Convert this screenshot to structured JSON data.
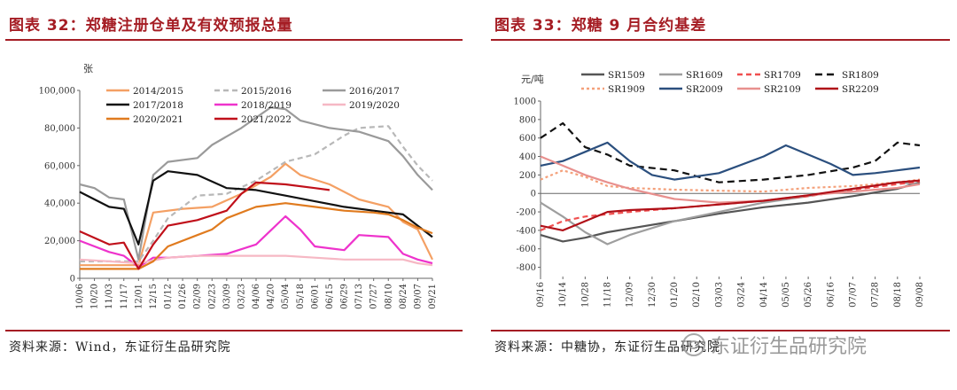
{
  "left": {
    "title": "图表 32：郑糖注册仓单及有效预报总量",
    "source": "资料来源：Wind，东证衍生品研究院"
  },
  "right": {
    "title": "图表 33：郑糖 9 月合约基差",
    "source": "资料来源：中糖协，东证衍生品研究院"
  },
  "watermark": {
    "text": "东证衍生品研究院",
    "icon": "wechat-icon"
  },
  "chart_data": [
    {
      "type": "line",
      "unit_label": "张",
      "x_ticks": [
        "10/06",
        "10/20",
        "11/03",
        "11/17",
        "12/01",
        "12/15",
        "01/12",
        "01/26",
        "02/09",
        "02/23",
        "03/09",
        "03/23",
        "04/06",
        "04/20",
        "05/04",
        "05/18",
        "06/01",
        "06/15",
        "06/29",
        "07/13",
        "07/27",
        "08/10",
        "08/24",
        "09/07",
        "09/21"
      ],
      "ylim": [
        0,
        100000
      ],
      "y_ticks": [
        0,
        20000,
        40000,
        60000,
        80000,
        100000
      ],
      "y_tick_labels": [
        "0",
        "20,000",
        "40,000",
        "60,000",
        "80,000",
        "100,000"
      ],
      "legend": "top",
      "series": [
        {
          "name": "2014/2015",
          "color": "#f4a064",
          "dash": "solid",
          "points": [
            [
              0,
              7000
            ],
            [
              4,
              7000
            ],
            [
              5,
              35000
            ],
            [
              7,
              37000
            ],
            [
              9,
              38000
            ],
            [
              11,
              45000
            ],
            [
              13,
              54000
            ],
            [
              14,
              61000
            ],
            [
              15,
              55000
            ],
            [
              17,
              50000
            ],
            [
              19,
              42000
            ],
            [
              21,
              38000
            ],
            [
              22,
              30000
            ],
            [
              23,
              26000
            ],
            [
              24,
              10000
            ]
          ]
        },
        {
          "name": "2015/2016",
          "color": "#b8b8b8",
          "dash": "6,4",
          "points": [
            [
              0,
              9000
            ],
            [
              4,
              9000
            ],
            [
              5,
              20000
            ],
            [
              6,
              32000
            ],
            [
              8,
              44000
            ],
            [
              10,
              45000
            ],
            [
              12,
              52000
            ],
            [
              14,
              62000
            ],
            [
              16,
              66000
            ],
            [
              18,
              76000
            ],
            [
              19,
              80000
            ],
            [
              21,
              81000
            ],
            [
              22,
              70000
            ],
            [
              23,
              60000
            ],
            [
              24,
              52000
            ]
          ]
        },
        {
          "name": "2016/2017",
          "color": "#9a9a9a",
          "dash": "solid",
          "points": [
            [
              0,
              50000
            ],
            [
              1,
              48000
            ],
            [
              2,
              43000
            ],
            [
              3,
              42000
            ],
            [
              4,
              10000
            ],
            [
              5,
              55000
            ],
            [
              6,
              62000
            ],
            [
              8,
              64000
            ],
            [
              9,
              71000
            ],
            [
              11,
              80000
            ],
            [
              13,
              91000
            ],
            [
              14,
              90000
            ],
            [
              15,
              84000
            ],
            [
              17,
              80000
            ],
            [
              19,
              78000
            ],
            [
              21,
              73000
            ],
            [
              22,
              65000
            ],
            [
              23,
              55000
            ],
            [
              24,
              47000
            ]
          ]
        },
        {
          "name": "2017/2018",
          "color": "#111111",
          "dash": "solid",
          "points": [
            [
              0,
              46000
            ],
            [
              2,
              38000
            ],
            [
              3,
              37000
            ],
            [
              4,
              18000
            ],
            [
              5,
              52000
            ],
            [
              6,
              57000
            ],
            [
              8,
              55000
            ],
            [
              10,
              48000
            ],
            [
              12,
              47000
            ],
            [
              14,
              44000
            ],
            [
              16,
              41000
            ],
            [
              18,
              38000
            ],
            [
              20,
              36000
            ],
            [
              22,
              34000
            ],
            [
              23,
              28000
            ],
            [
              24,
              22000
            ]
          ]
        },
        {
          "name": "2018/2019",
          "color": "#ee33cc",
          "dash": "solid",
          "points": [
            [
              0,
              20000
            ],
            [
              2,
              14000
            ],
            [
              3,
              12000
            ],
            [
              4,
              6000
            ],
            [
              5,
              11000
            ],
            [
              6,
              11000
            ],
            [
              8,
              12000
            ],
            [
              10,
              13000
            ],
            [
              12,
              18000
            ],
            [
              14,
              33000
            ],
            [
              15,
              26000
            ],
            [
              16,
              17000
            ],
            [
              17,
              16000
            ],
            [
              18,
              15000
            ],
            [
              19,
              23000
            ],
            [
              21,
              22000
            ],
            [
              22,
              13000
            ],
            [
              23,
              10000
            ],
            [
              24,
              8000
            ]
          ]
        },
        {
          "name": "2019/2020",
          "color": "#f6b8c4",
          "dash": "solid",
          "points": [
            [
              0,
              10000
            ],
            [
              2,
              9000
            ],
            [
              4,
              8000
            ],
            [
              6,
              11000
            ],
            [
              8,
              12000
            ],
            [
              10,
              12000
            ],
            [
              12,
              12000
            ],
            [
              14,
              12000
            ],
            [
              16,
              11000
            ],
            [
              18,
              10000
            ],
            [
              20,
              10000
            ],
            [
              22,
              10000
            ],
            [
              23,
              8000
            ],
            [
              24,
              7000
            ]
          ]
        },
        {
          "name": "2020/2021",
          "color": "#e07b1f",
          "dash": "solid",
          "points": [
            [
              0,
              5000
            ],
            [
              4,
              5000
            ],
            [
              5,
              9000
            ],
            [
              6,
              17000
            ],
            [
              8,
              23000
            ],
            [
              9,
              26000
            ],
            [
              10,
              32000
            ],
            [
              12,
              38000
            ],
            [
              14,
              40000
            ],
            [
              16,
              38000
            ],
            [
              18,
              36000
            ],
            [
              20,
              35000
            ],
            [
              21,
              34000
            ],
            [
              22,
              31000
            ],
            [
              23,
              27000
            ],
            [
              24,
              24000
            ]
          ]
        },
        {
          "name": "2021/2022",
          "color": "#c0101a",
          "dash": "solid",
          "points": [
            [
              0,
              25000
            ],
            [
              2,
              18000
            ],
            [
              3,
              19000
            ],
            [
              4,
              5000
            ],
            [
              5,
              18000
            ],
            [
              6,
              28000
            ],
            [
              8,
              31000
            ],
            [
              10,
              36000
            ],
            [
              11,
              45000
            ],
            [
              12,
              51000
            ],
            [
              14,
              50000
            ],
            [
              16,
              48000
            ],
            [
              17,
              47000
            ]
          ]
        }
      ]
    },
    {
      "type": "line",
      "unit_label": "元/吨",
      "x_ticks": [
        "09/16",
        "10/14",
        "10/28",
        "11/18",
        "12/09",
        "12/30",
        "01/20",
        "02/10",
        "03/03",
        "03/24",
        "04/14",
        "05/05",
        "05/26",
        "06/16",
        "07/07",
        "07/28",
        "08/18",
        "09/08"
      ],
      "ylim": [
        -900,
        1000
      ],
      "y_ticks": [
        -800,
        -600,
        -400,
        -200,
        0,
        200,
        400,
        600,
        800,
        1000
      ],
      "y_tick_labels": [
        "-800",
        "-600",
        "-400",
        "-200",
        "0",
        "200",
        "400",
        "600",
        "800",
        "1000"
      ],
      "legend": "top",
      "series": [
        {
          "name": "SR1509",
          "color": "#555555",
          "dash": "solid",
          "points": [
            [
              0,
              -450
            ],
            [
              1,
              -520
            ],
            [
              2,
              -480
            ],
            [
              3,
              -420
            ],
            [
              4,
              -380
            ],
            [
              6,
              -300
            ],
            [
              8,
              -220
            ],
            [
              10,
              -150
            ],
            [
              12,
              -100
            ],
            [
              14,
              -30
            ],
            [
              16,
              50
            ],
            [
              17,
              120
            ]
          ]
        },
        {
          "name": "SR1609",
          "color": "#9e9e9e",
          "dash": "solid",
          "points": [
            [
              0,
              -100
            ],
            [
              1,
              -250
            ],
            [
              2,
              -420
            ],
            [
              3,
              -550
            ],
            [
              4,
              -450
            ],
            [
              6,
              -300
            ],
            [
              8,
              -200
            ],
            [
              10,
              -100
            ],
            [
              12,
              -30
            ],
            [
              14,
              50
            ],
            [
              16,
              120
            ],
            [
              17,
              100
            ]
          ]
        },
        {
          "name": "SR1709",
          "color": "#f05050",
          "dash": "6,4",
          "points": [
            [
              0,
              -400
            ],
            [
              1,
              -300
            ],
            [
              2,
              -250
            ],
            [
              4,
              -200
            ],
            [
              6,
              -160
            ],
            [
              8,
              -120
            ],
            [
              10,
              -80
            ],
            [
              12,
              -30
            ],
            [
              14,
              40
            ],
            [
              16,
              100
            ],
            [
              17,
              130
            ]
          ]
        },
        {
          "name": "SR1809",
          "color": "#111111",
          "dash": "8,5",
          "points": [
            [
              0,
              600
            ],
            [
              1,
              760
            ],
            [
              2,
              500
            ],
            [
              3,
              420
            ],
            [
              4,
              300
            ],
            [
              6,
              250
            ],
            [
              8,
              120
            ],
            [
              10,
              150
            ],
            [
              12,
              200
            ],
            [
              14,
              280
            ],
            [
              15,
              350
            ],
            [
              16,
              550
            ],
            [
              17,
              520
            ]
          ]
        },
        {
          "name": "SR1909",
          "color": "#f4a07a",
          "dash": "3,3",
          "points": [
            [
              0,
              150
            ],
            [
              1,
              250
            ],
            [
              2,
              180
            ],
            [
              3,
              80
            ],
            [
              4,
              60
            ],
            [
              6,
              40
            ],
            [
              8,
              30
            ],
            [
              10,
              20
            ],
            [
              12,
              60
            ],
            [
              14,
              80
            ],
            [
              16,
              120
            ],
            [
              17,
              150
            ]
          ]
        },
        {
          "name": "SR2009",
          "color": "#2b4f7e",
          "dash": "solid",
          "points": [
            [
              0,
              300
            ],
            [
              1,
              350
            ],
            [
              2,
              450
            ],
            [
              3,
              550
            ],
            [
              4,
              350
            ],
            [
              5,
              200
            ],
            [
              6,
              150
            ],
            [
              8,
              220
            ],
            [
              10,
              400
            ],
            [
              11,
              520
            ],
            [
              12,
              420
            ],
            [
              13,
              320
            ],
            [
              14,
              200
            ],
            [
              15,
              220
            ],
            [
              16,
              250
            ],
            [
              17,
              280
            ]
          ]
        },
        {
          "name": "SR2109",
          "color": "#e8908e",
          "dash": "solid",
          "points": [
            [
              0,
              400
            ],
            [
              1,
              300
            ],
            [
              2,
              200
            ],
            [
              3,
              120
            ],
            [
              4,
              50
            ],
            [
              6,
              -60
            ],
            [
              8,
              -100
            ],
            [
              10,
              -80
            ],
            [
              12,
              -20
            ],
            [
              14,
              20
            ],
            [
              16,
              60
            ],
            [
              17,
              100
            ]
          ]
        },
        {
          "name": "SR2209",
          "color": "#b01018",
          "dash": "solid",
          "points": [
            [
              0,
              -350
            ],
            [
              1,
              -400
            ],
            [
              2,
              -300
            ],
            [
              3,
              -200
            ],
            [
              4,
              -180
            ],
            [
              6,
              -160
            ],
            [
              8,
              -120
            ],
            [
              10,
              -80
            ],
            [
              12,
              -20
            ],
            [
              14,
              50
            ],
            [
              16,
              120
            ],
            [
              17,
              140
            ]
          ]
        }
      ]
    }
  ]
}
